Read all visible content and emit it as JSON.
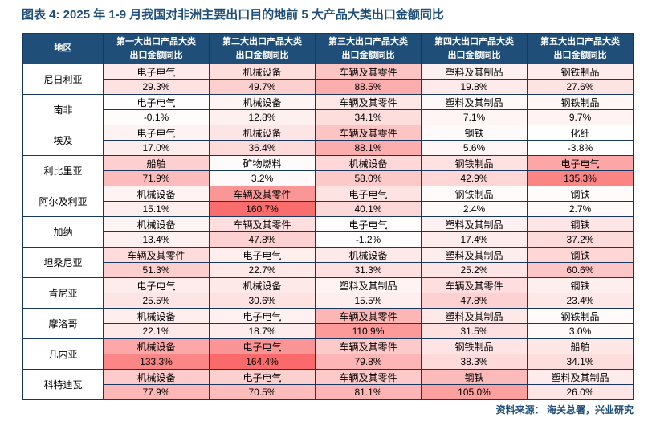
{
  "title": "图表 4:  2025 年 1-9 月我国对非洲主要出口目的地前 5 大产品大类出口金额同比",
  "source": "资料来源：  海关总署，兴业研究",
  "colors": {
    "header_background": "#1F4E79",
    "table_border": "#17375E",
    "title_text": "#1F4E79",
    "heatmap_high": "#FA6A6A",
    "heatmap_low": "#FFFFFF"
  },
  "chart_data": {
    "type": "heatmap",
    "title": "2025 年 1-9 月我国对非洲主要出口目的地前 5 大产品大类出口金额同比",
    "region_header": "地区",
    "columns": [
      {
        "line1": "第一大出口产品大类",
        "line2": "出口金额同比"
      },
      {
        "line1": "第二大出口产品大类",
        "line2": "出口金额同比"
      },
      {
        "line1": "第三大出口产品大类",
        "line2": "出口金额同比"
      },
      {
        "line1": "第四大出口产品大类",
        "line2": "出口金额同比"
      },
      {
        "line1": "第五大出口产品大类",
        "line2": "出口金额同比"
      }
    ],
    "color_scale": {
      "min": -3.8,
      "max": 164.4,
      "low_color": "#FFFFFF",
      "high_color": "#FA6A6A"
    },
    "rows": [
      {
        "region": "尼日利亚",
        "cells": [
          {
            "product": "电子电气",
            "yoy": "29.3%"
          },
          {
            "product": "机械设备",
            "yoy": "49.7%"
          },
          {
            "product": "车辆及其零件",
            "yoy": "88.5%"
          },
          {
            "product": "塑料及其制品",
            "yoy": "19.8%"
          },
          {
            "product": "钢铁制品",
            "yoy": "27.6%"
          }
        ]
      },
      {
        "region": "南非",
        "cells": [
          {
            "product": "电子电气",
            "yoy": "-0.1%"
          },
          {
            "product": "机械设备",
            "yoy": "12.8%"
          },
          {
            "product": "车辆及其零件",
            "yoy": "34.1%"
          },
          {
            "product": "塑料及其制品",
            "yoy": "7.1%"
          },
          {
            "product": "钢铁制品",
            "yoy": "9.7%"
          }
        ]
      },
      {
        "region": "埃及",
        "cells": [
          {
            "product": "电子电气",
            "yoy": "17.0%"
          },
          {
            "product": "机械设备",
            "yoy": "36.4%"
          },
          {
            "product": "车辆及其零件",
            "yoy": "88.1%"
          },
          {
            "product": "钢铁",
            "yoy": "5.6%"
          },
          {
            "product": "化纤",
            "yoy": "-3.8%"
          }
        ]
      },
      {
        "region": "利比里亚",
        "cells": [
          {
            "product": "船舶",
            "yoy": "71.9%"
          },
          {
            "product": "矿物燃料",
            "yoy": "3.2%"
          },
          {
            "product": "机械设备",
            "yoy": "58.0%"
          },
          {
            "product": "钢铁制品",
            "yoy": "42.9%"
          },
          {
            "product": "电子电气",
            "yoy": "135.3%"
          }
        ]
      },
      {
        "region": "阿尔及利亚",
        "cells": [
          {
            "product": "机械设备",
            "yoy": "15.1%"
          },
          {
            "product": "车辆及其零件",
            "yoy": "160.7%"
          },
          {
            "product": "电子电气",
            "yoy": "40.1%"
          },
          {
            "product": "钢铁制品",
            "yoy": "2.4%"
          },
          {
            "product": "钢铁",
            "yoy": "2.7%"
          }
        ]
      },
      {
        "region": "加纳",
        "cells": [
          {
            "product": "机械设备",
            "yoy": "13.4%"
          },
          {
            "product": "车辆及其零件",
            "yoy": "47.8%"
          },
          {
            "product": "电子电气",
            "yoy": "-1.2%"
          },
          {
            "product": "塑料及其制品",
            "yoy": "17.4%"
          },
          {
            "product": "钢铁",
            "yoy": "37.2%"
          }
        ]
      },
      {
        "region": "坦桑尼亚",
        "cells": [
          {
            "product": "车辆及其零件",
            "yoy": "51.3%"
          },
          {
            "product": "电子电气",
            "yoy": "22.7%"
          },
          {
            "product": "机械设备",
            "yoy": "31.3%"
          },
          {
            "product": "塑料及其制品",
            "yoy": "25.2%"
          },
          {
            "product": "钢铁",
            "yoy": "60.6%"
          }
        ]
      },
      {
        "region": "肯尼亚",
        "cells": [
          {
            "product": "电子电气",
            "yoy": "25.5%"
          },
          {
            "product": "机械设备",
            "yoy": "30.6%"
          },
          {
            "product": "塑料及其制品",
            "yoy": "15.5%"
          },
          {
            "product": "车辆及其零件",
            "yoy": "47.8%"
          },
          {
            "product": "钢铁",
            "yoy": "23.4%"
          }
        ]
      },
      {
        "region": "摩洛哥",
        "cells": [
          {
            "product": "机械设备",
            "yoy": "22.1%"
          },
          {
            "product": "电子电气",
            "yoy": "18.7%"
          },
          {
            "product": "车辆及其零件",
            "yoy": "110.9%"
          },
          {
            "product": "塑料及其制品",
            "yoy": "31.5%"
          },
          {
            "product": "钢铁制品",
            "yoy": "3.0%"
          }
        ]
      },
      {
        "region": "几内亚",
        "cells": [
          {
            "product": "机械设备",
            "yoy": "133.3%"
          },
          {
            "product": "电子电气",
            "yoy": "164.4%"
          },
          {
            "product": "车辆及其零件",
            "yoy": "79.8%"
          },
          {
            "product": "钢铁制品",
            "yoy": "38.3%"
          },
          {
            "product": "船舶",
            "yoy": "34.1%"
          }
        ]
      },
      {
        "region": "科特迪瓦",
        "cells": [
          {
            "product": "机械设备",
            "yoy": "77.9%"
          },
          {
            "product": "电子电气",
            "yoy": "70.5%"
          },
          {
            "product": "车辆及其零件",
            "yoy": "81.1%"
          },
          {
            "product": "钢铁",
            "yoy": "105.0%"
          },
          {
            "product": "塑料及其制品",
            "yoy": "26.0%"
          }
        ]
      }
    ]
  }
}
